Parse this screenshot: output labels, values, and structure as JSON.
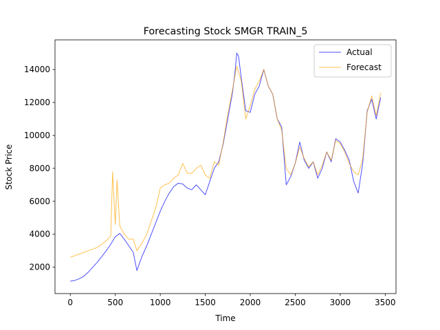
{
  "chart_data": {
    "type": "line",
    "title": "Forecasting Stock SMGR TRAIN_5",
    "xlabel": "Time",
    "ylabel": "Stock Price",
    "xlim": [
      -170,
      3620
    ],
    "ylim": [
      400,
      15800
    ],
    "xticks": [
      0,
      500,
      1000,
      1500,
      2000,
      2500,
      3000,
      3500
    ],
    "yticks": [
      2000,
      4000,
      6000,
      8000,
      10000,
      12000,
      14000
    ],
    "grid": false,
    "legend_position": "top-right",
    "series": [
      {
        "name": "Actual",
        "color": "#0000ff",
        "opacity": 0.7,
        "x": [
          0,
          50,
          100,
          150,
          200,
          250,
          300,
          350,
          400,
          450,
          500,
          550,
          600,
          650,
          700,
          740,
          800,
          850,
          900,
          950,
          1000,
          1050,
          1100,
          1150,
          1200,
          1250,
          1300,
          1350,
          1400,
          1450,
          1500,
          1550,
          1600,
          1650,
          1700,
          1750,
          1800,
          1830,
          1850,
          1870,
          1900,
          1950,
          2000,
          2050,
          2100,
          2150,
          2200,
          2250,
          2300,
          2350,
          2400,
          2450,
          2500,
          2550,
          2600,
          2650,
          2700,
          2750,
          2800,
          2850,
          2900,
          2950,
          3000,
          3050,
          3100,
          3150,
          3200,
          3250,
          3300,
          3350,
          3400,
          3450
        ],
        "values": [
          1150,
          1200,
          1300,
          1450,
          1700,
          2000,
          2300,
          2650,
          3000,
          3400,
          3850,
          4050,
          3700,
          3300,
          2900,
          1800,
          2700,
          3300,
          4000,
          4700,
          5400,
          6000,
          6500,
          6900,
          7100,
          7050,
          6800,
          6700,
          7000,
          6700,
          6400,
          7200,
          8000,
          8400,
          9500,
          11000,
          12500,
          13800,
          15000,
          14800,
          13500,
          11500,
          11400,
          12500,
          13000,
          14000,
          13000,
          12500,
          11000,
          10500,
          7000,
          7500,
          8300,
          9600,
          8500,
          8000,
          8400,
          7400,
          8000,
          9000,
          8400,
          9800,
          9600,
          9100,
          8500,
          7200,
          6500,
          8300,
          11500,
          12200,
          11000,
          12300
        ]
      },
      {
        "name": "Forecast",
        "color": "#ffa500",
        "opacity": 0.7,
        "x": [
          0,
          50,
          100,
          150,
          200,
          250,
          300,
          350,
          400,
          450,
          470,
          500,
          520,
          550,
          600,
          650,
          700,
          740,
          800,
          850,
          900,
          950,
          1000,
          1050,
          1100,
          1150,
          1200,
          1250,
          1300,
          1350,
          1400,
          1450,
          1500,
          1550,
          1600,
          1650,
          1700,
          1750,
          1800,
          1850,
          1900,
          1950,
          2000,
          2050,
          2100,
          2150,
          2200,
          2250,
          2300,
          2350,
          2400,
          2450,
          2500,
          2550,
          2600,
          2650,
          2700,
          2750,
          2800,
          2850,
          2900,
          2950,
          3000,
          3050,
          3100,
          3150,
          3200,
          3250,
          3300,
          3350,
          3400,
          3450
        ],
        "values": [
          2600,
          2700,
          2800,
          2900,
          3000,
          3100,
          3200,
          3400,
          3600,
          3900,
          7800,
          4600,
          7300,
          4500,
          4000,
          3700,
          3700,
          3000,
          3500,
          4000,
          4800,
          5600,
          6800,
          7000,
          7100,
          7400,
          7600,
          8300,
          7700,
          7700,
          8000,
          8200,
          7600,
          7400,
          8400,
          8200,
          9600,
          11300,
          12700,
          14200,
          13300,
          11000,
          11800,
          12800,
          13300,
          14000,
          13000,
          12500,
          11000,
          10300,
          8000,
          7600,
          8300,
          9300,
          8600,
          8100,
          8400,
          7600,
          8200,
          9000,
          8500,
          9700,
          9500,
          9000,
          8300,
          7800,
          7600,
          8600,
          11400,
          12400,
          11200,
          12600
        ]
      }
    ]
  }
}
